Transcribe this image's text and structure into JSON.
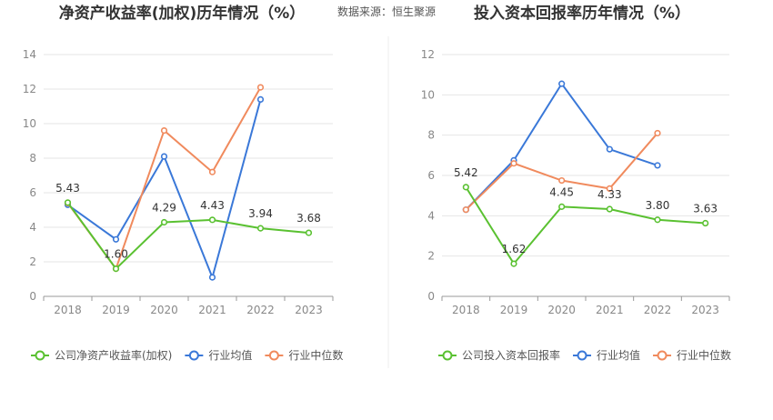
{
  "source_label": "数据来源：恒生聚源",
  "colors": {
    "company": "#5ac131",
    "industry_avg": "#3a78d8",
    "industry_median": "#f08a5d",
    "grid": "#e6e6e6",
    "axis": "#999999",
    "text": "#333333",
    "title": "#333333"
  },
  "chart_data": [
    {
      "type": "line",
      "title": "净资产收益率(加权)历年情况（%）",
      "categories": [
        "2018",
        "2019",
        "2020",
        "2021",
        "2022",
        "2023"
      ],
      "ylim": [
        0,
        14
      ],
      "yticks": [
        "0",
        "2",
        "4",
        "6",
        "8",
        "10",
        "12",
        "14"
      ],
      "grid": true,
      "legend_position": "bottom",
      "series": [
        {
          "name": "公司净资产收益率(加权)",
          "key": "company",
          "values": [
            5.43,
            1.6,
            4.29,
            4.43,
            3.94,
            3.68
          ],
          "labels": [
            "5.43",
            "1.60",
            "4.29",
            "4.43",
            "3.94",
            "3.68"
          ]
        },
        {
          "name": "行业均值",
          "key": "industry_avg",
          "values": [
            5.3,
            3.3,
            8.1,
            1.1,
            11.4,
            null
          ]
        },
        {
          "name": "行业中位数",
          "key": "industry_median",
          "values": [
            5.4,
            1.6,
            9.6,
            7.2,
            12.1,
            null
          ]
        }
      ]
    },
    {
      "type": "line",
      "title": "投入资本回报率历年情况（%）",
      "categories": [
        "2018",
        "2019",
        "2020",
        "2021",
        "2022",
        "2023"
      ],
      "ylim": [
        0,
        12
      ],
      "yticks": [
        "0",
        "2",
        "4",
        "6",
        "8",
        "10",
        "12"
      ],
      "grid": true,
      "legend_position": "bottom",
      "series": [
        {
          "name": "公司投入资本回报率",
          "key": "company",
          "values": [
            5.42,
            1.62,
            4.45,
            4.33,
            3.8,
            3.63
          ],
          "labels": [
            "5.42",
            "1.62",
            "4.45",
            "4.33",
            "3.80",
            "3.63"
          ]
        },
        {
          "name": "行业均值",
          "key": "industry_avg",
          "values": [
            4.3,
            6.75,
            10.55,
            7.3,
            6.5,
            null
          ]
        },
        {
          "name": "行业中位数",
          "key": "industry_median",
          "values": [
            4.3,
            6.6,
            5.75,
            5.35,
            8.1,
            null
          ]
        }
      ]
    }
  ]
}
